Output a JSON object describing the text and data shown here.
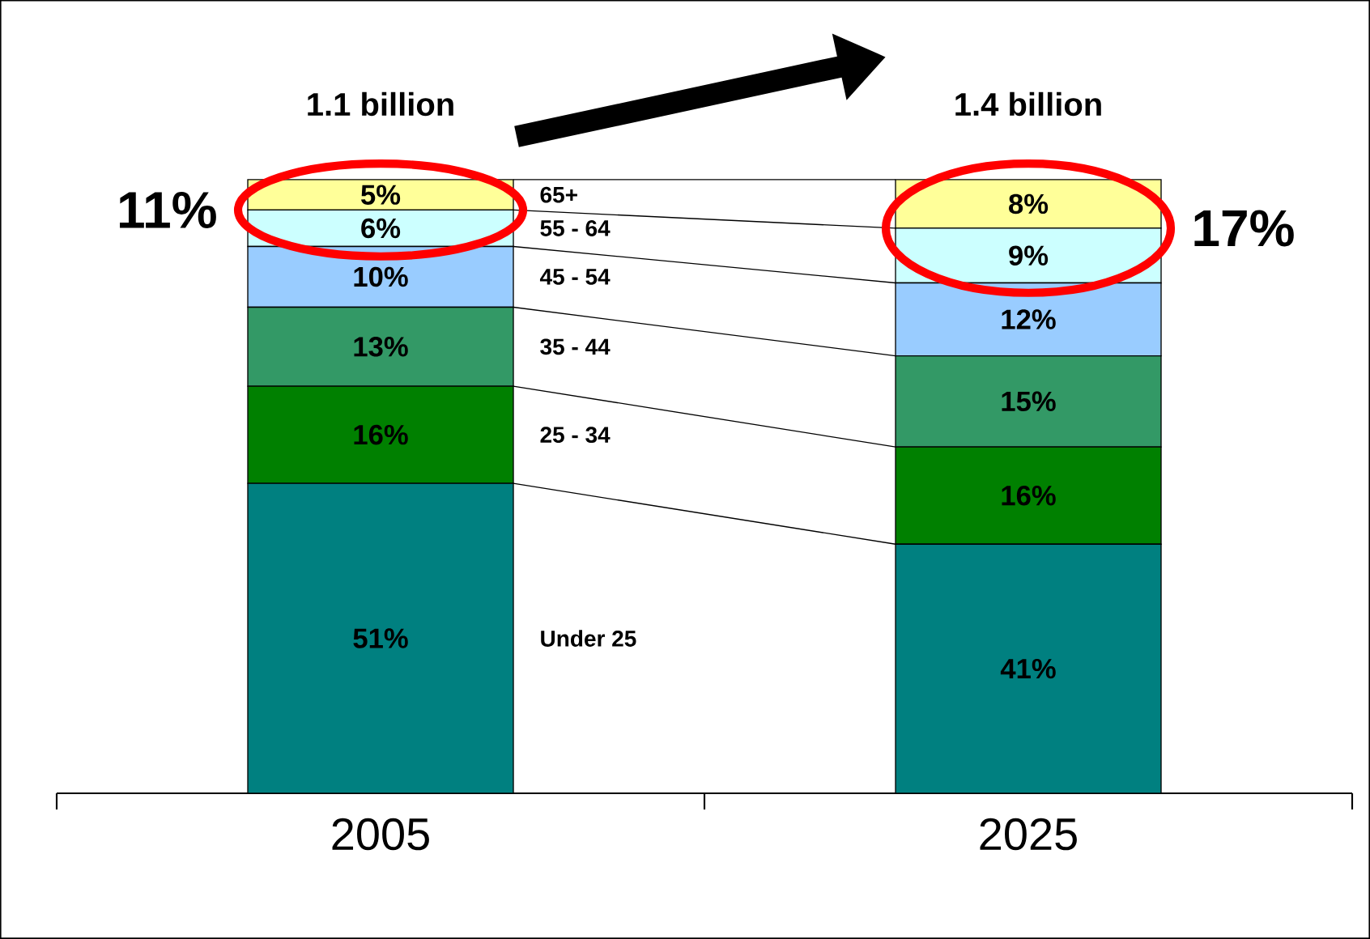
{
  "chart_data": {
    "type": "bar",
    "stacked": true,
    "categories": [
      "2005",
      "2025"
    ],
    "series": [
      {
        "name": "Under 25",
        "color": "#008080",
        "values": [
          51,
          41
        ],
        "value_labels": [
          "51%",
          "41%"
        ]
      },
      {
        "name": "25 - 34",
        "color": "#008000",
        "values": [
          16,
          16
        ],
        "value_labels": [
          "16%",
          "16%"
        ]
      },
      {
        "name": "35 - 44",
        "color": "#339966",
        "values": [
          13,
          15
        ],
        "value_labels": [
          "13%",
          "15%"
        ]
      },
      {
        "name": "45 - 54",
        "color": "#99ccff",
        "values": [
          10,
          12
        ],
        "value_labels": [
          "10%",
          "12%"
        ]
      },
      {
        "name": "55 - 64",
        "color": "#ccffff",
        "values": [
          6,
          9
        ],
        "value_labels": [
          "6%",
          "9%"
        ]
      },
      {
        "name": "65+",
        "color": "#ffff99",
        "values": [
          5,
          8
        ],
        "value_labels": [
          "5%",
          "8%"
        ]
      }
    ],
    "annotations": [
      {
        "text": "1.1 billion",
        "x": "2005",
        "y": 101
      },
      {
        "text": "1.4 billion",
        "x": "2025",
        "y": 101
      },
      "11%",
      "17%"
    ]
  }
}
